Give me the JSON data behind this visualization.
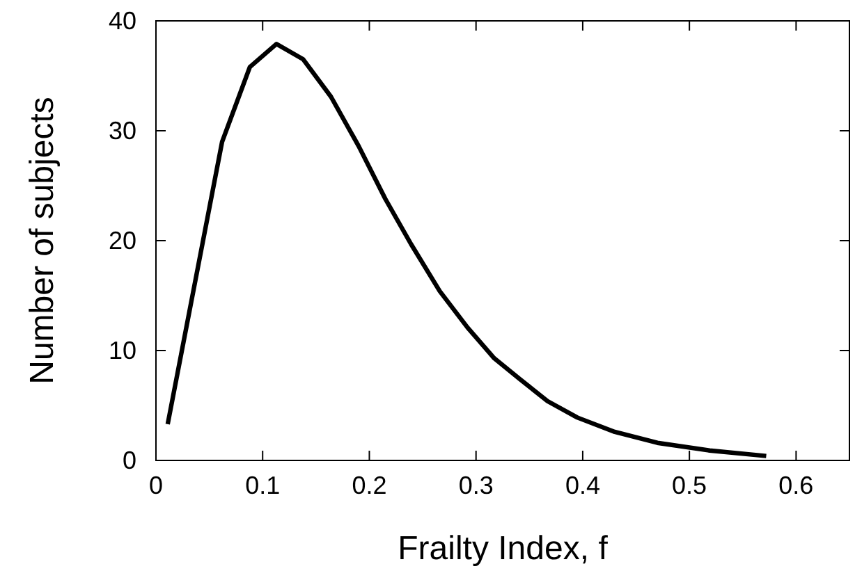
{
  "chart_data": {
    "type": "line",
    "xlabel": "Frailty Index, f",
    "ylabel": "Number of subjects",
    "xlim": [
      0,
      0.65
    ],
    "xticks": [
      0,
      0.1,
      0.2,
      0.3,
      0.4,
      0.5,
      0.6
    ],
    "ylim": [
      0,
      40
    ],
    "yticks": [
      0,
      10,
      20,
      30,
      40
    ],
    "grid": false,
    "marker": "none",
    "line_style": "solid",
    "series": [
      {
        "color": "#000000",
        "x": [
          0.011,
          0.062,
          0.088,
          0.113,
          0.138,
          0.164,
          0.19,
          0.215,
          0.239,
          0.266,
          0.292,
          0.317,
          0.341,
          0.367,
          0.395,
          0.43,
          0.47,
          0.519,
          0.572
        ],
        "values": [
          3.3,
          29.0,
          35.8,
          37.9,
          36.5,
          33.1,
          28.6,
          23.8,
          19.7,
          15.4,
          12.1,
          9.3,
          7.4,
          5.4,
          3.9,
          2.6,
          1.6,
          0.9,
          0.4
        ]
      }
    ]
  }
}
